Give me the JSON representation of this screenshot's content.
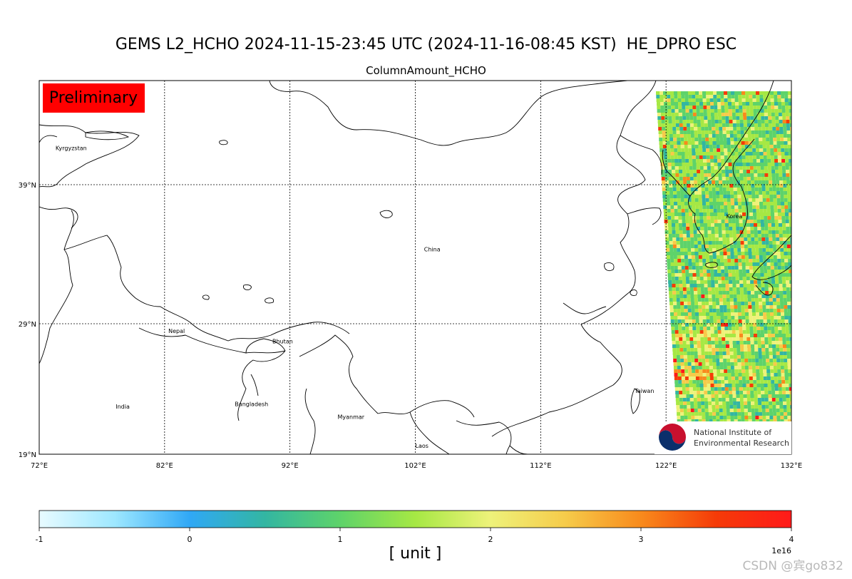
{
  "title": "GEMS L2_HCHO 2024-11-15-23:45 UTC (2024-11-16-08:45 KST)  HE_DPRO ESC",
  "subtitle": "ColumnAmount_HCHO",
  "badge": "Preliminary",
  "logo": {
    "line1": "National Institute of",
    "line2": "Environmental Research"
  },
  "map": {
    "extent": {
      "lon": [
        72,
        132
      ],
      "lat": [
        19,
        46
      ]
    },
    "lat_ticks": [
      {
        "value": 39,
        "label": "39°N"
      },
      {
        "value": 29,
        "label": "29°N"
      },
      {
        "value": 19,
        "label": "19°N"
      }
    ],
    "lon_ticks": [
      {
        "value": 72,
        "label": "72°E"
      },
      {
        "value": 82,
        "label": "82°E"
      },
      {
        "value": 92,
        "label": "92°E"
      },
      {
        "value": 102,
        "label": "102°E"
      },
      {
        "value": 112,
        "label": "112°E"
      },
      {
        "value": 122,
        "label": "122°E"
      },
      {
        "value": 132,
        "label": "132°E"
      }
    ],
    "places": [
      {
        "name": "Kyrgyzstan",
        "lon": 73.3,
        "lat": 41.5
      },
      {
        "name": "China",
        "lon": 102.7,
        "lat": 34.2
      },
      {
        "name": "Korea",
        "lon": 126.8,
        "lat": 36.6
      },
      {
        "name": "Nepal",
        "lon": 82.3,
        "lat": 28.3
      },
      {
        "name": "Bhutan",
        "lon": 90.6,
        "lat": 27.5
      },
      {
        "name": "India",
        "lon": 78.1,
        "lat": 22.5
      },
      {
        "name": "Bangladesh",
        "lon": 87.6,
        "lat": 22.7
      },
      {
        "name": "Myanmar",
        "lon": 95.8,
        "lat": 21.7
      },
      {
        "name": "Taiwan",
        "lon": 119.5,
        "lat": 23.7
      },
      {
        "name": "Laos",
        "lon": 102.0,
        "lat": 19.5
      }
    ]
  },
  "colorbar": {
    "min": -1,
    "max": 4,
    "tick_labels": [
      {
        "value": -1,
        "label": "-1"
      },
      {
        "value": 0,
        "label": "0"
      },
      {
        "value": 1,
        "label": "1"
      },
      {
        "value": 2,
        "label": "2"
      },
      {
        "value": 3,
        "label": "3"
      },
      {
        "value": 4,
        "label": "4"
      }
    ],
    "exponent": "1e16",
    "label": "[ unit ]",
    "colors": [
      "#e8fbff",
      "#9ee8ff",
      "#30a8f6",
      "#33b6a2",
      "#5ed36a",
      "#a6e844",
      "#eef27a",
      "#f6cb4a",
      "#f88a1c",
      "#f53b08",
      "#ff1a1a"
    ]
  },
  "watermark": "CSDN @宾go832"
}
